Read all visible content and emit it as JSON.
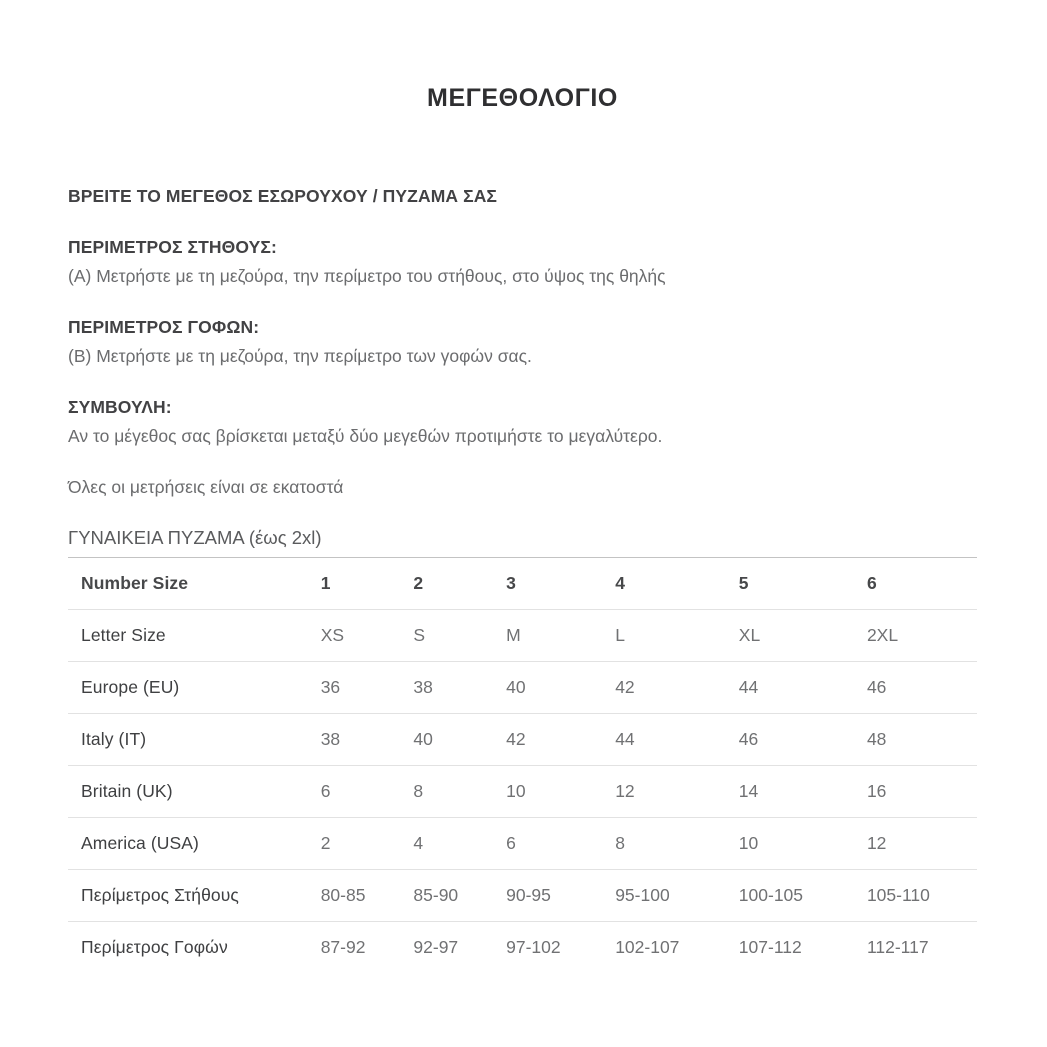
{
  "page": {
    "title": "ΜΕΓΕΘΟΛΟΓΙΟ",
    "intro_heading": "ΒΡΕΙΤΕ ΤΟ ΜΕΓΕΘΟΣ ΕΣΩΡΟΥΧΟΥ / ΠΥΖΑΜΑ ΣΑΣ",
    "sections": [
      {
        "heading": "ΠΕΡΙΜΕΤΡΟΣ ΣΤΗΘΟΥΣ:",
        "body": "(Α) Μετρήστε με τη μεζούρα, την περίμετρο του στήθους, στο ύψος της θηλής"
      },
      {
        "heading": "ΠΕΡΙΜΕΤΡΟΣ ΓΟΦΩΝ:",
        "body": "(Β) Μετρήστε με τη μεζούρα, την περίμετρο των γοφών σας."
      },
      {
        "heading": "ΣΥΜΒΟΥΛΗ:",
        "body": "Αν το μέγεθος σας βρίσκεται μεταξύ δύο μεγεθών προτιμήστε το μεγαλύτερο."
      }
    ],
    "note": "Όλες οι μετρήσεις είναι σε εκατοστά",
    "table_caption": "ΓΥΝΑΙΚΕΙΑ ΠΥΖΑΜΑ (έως 2xl)"
  },
  "size_table": {
    "rows": [
      {
        "label": "Number Size",
        "emphasis": true,
        "values": [
          "1",
          "2",
          "3",
          "4",
          "5",
          "6"
        ]
      },
      {
        "label": "Letter Size",
        "emphasis": false,
        "values": [
          "XS",
          "S",
          "M",
          "L",
          "XL",
          "2XL"
        ]
      },
      {
        "label": "Europe (EU)",
        "emphasis": false,
        "values": [
          "36",
          "38",
          "40",
          "42",
          "44",
          "46"
        ]
      },
      {
        "label": "Italy (IT)",
        "emphasis": false,
        "values": [
          "38",
          "40",
          "42",
          "44",
          "46",
          "48"
        ]
      },
      {
        "label": "Britain (UK)",
        "emphasis": false,
        "values": [
          "6",
          "8",
          "10",
          "12",
          "14",
          "16"
        ]
      },
      {
        "label": "America (USA)",
        "emphasis": false,
        "values": [
          "2",
          "4",
          "6",
          "8",
          "10",
          "12"
        ]
      },
      {
        "label": "Περίμετρος Στήθους",
        "emphasis": false,
        "values": [
          "80-85",
          "85-90",
          "90-95",
          "95-100",
          "100-105",
          "105-110"
        ]
      },
      {
        "label": "Περίμετρος Γοφών",
        "emphasis": false,
        "values": [
          "87-92",
          "92-97",
          "97-102",
          "102-107",
          "107-112",
          "112-117"
        ]
      }
    ]
  },
  "colors": {
    "background": "#ffffff",
    "title_text": "#2f2f31",
    "heading_text": "#424244",
    "body_text": "#6b6c6e",
    "table_label_text": "#3f4042",
    "table_value_text": "#707173",
    "table_top_border": "#c3c3c3",
    "table_row_border": "#e2e2e2"
  }
}
